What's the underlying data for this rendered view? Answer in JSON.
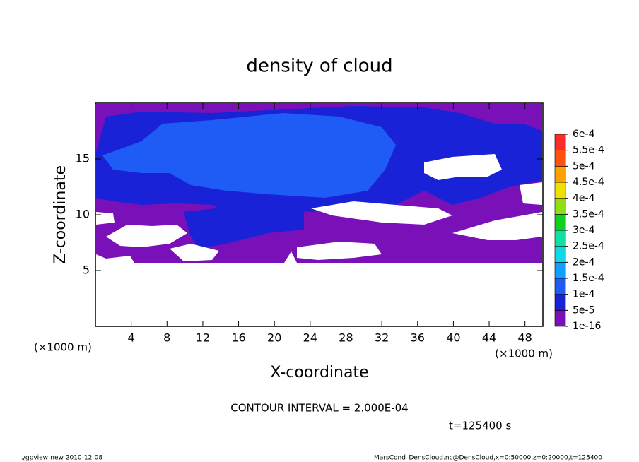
{
  "chart_data": {
    "type": "contour",
    "title": "density of cloud",
    "x_label": "X-coordinate",
    "y_label": "Z-coordinate",
    "x_unit": "(×1000 m)",
    "y_unit": "(×1000 m)",
    "xlim": [
      0,
      50
    ],
    "xticks": [
      4,
      8,
      12,
      16,
      20,
      24,
      28,
      32,
      36,
      40,
      44,
      48
    ],
    "ylim": [
      0,
      20
    ],
    "yticks": [
      5,
      10,
      15
    ],
    "levels": [
      {
        "value": 1e-16,
        "label": "1e-16"
      },
      {
        "value": 5e-05,
        "label": "5e-5"
      },
      {
        "value": 0.0001,
        "label": "1e-4"
      },
      {
        "value": 0.00015,
        "label": "1.5e-4"
      },
      {
        "value": 0.0002,
        "label": "2e-4"
      },
      {
        "value": 0.00025,
        "label": "2.5e-4"
      },
      {
        "value": 0.0003,
        "label": "3e-4"
      },
      {
        "value": 0.00035,
        "label": "3.5e-4"
      },
      {
        "value": 0.0004,
        "label": "4e-4"
      },
      {
        "value": 0.00045,
        "label": "4.5e-4"
      },
      {
        "value": 0.0005,
        "label": "5e-4"
      },
      {
        "value": 0.00055,
        "label": "5.5e-4"
      },
      {
        "value": 0.0006,
        "label": "6e-4"
      }
    ],
    "colors": [
      "#7a10b8",
      "#1a22d8",
      "#1e5cf5",
      "#10a0ff",
      "#10d8e8",
      "#10e0a0",
      "#10d020",
      "#90e010",
      "#f0e000",
      "#ffa000",
      "#ff5010",
      "#ff2a2a",
      "#ff8c8c"
    ],
    "contour_interval": "CONTOUR INTERVAL = 2.000E-04",
    "time_label": "t=125400 s"
  },
  "footer": {
    "left": "./gpview-new   2010-12-08",
    "right": "MarsCond_DensCloud.nc@DensCloud,x=0:50000,z=0:20000,t=125400"
  }
}
